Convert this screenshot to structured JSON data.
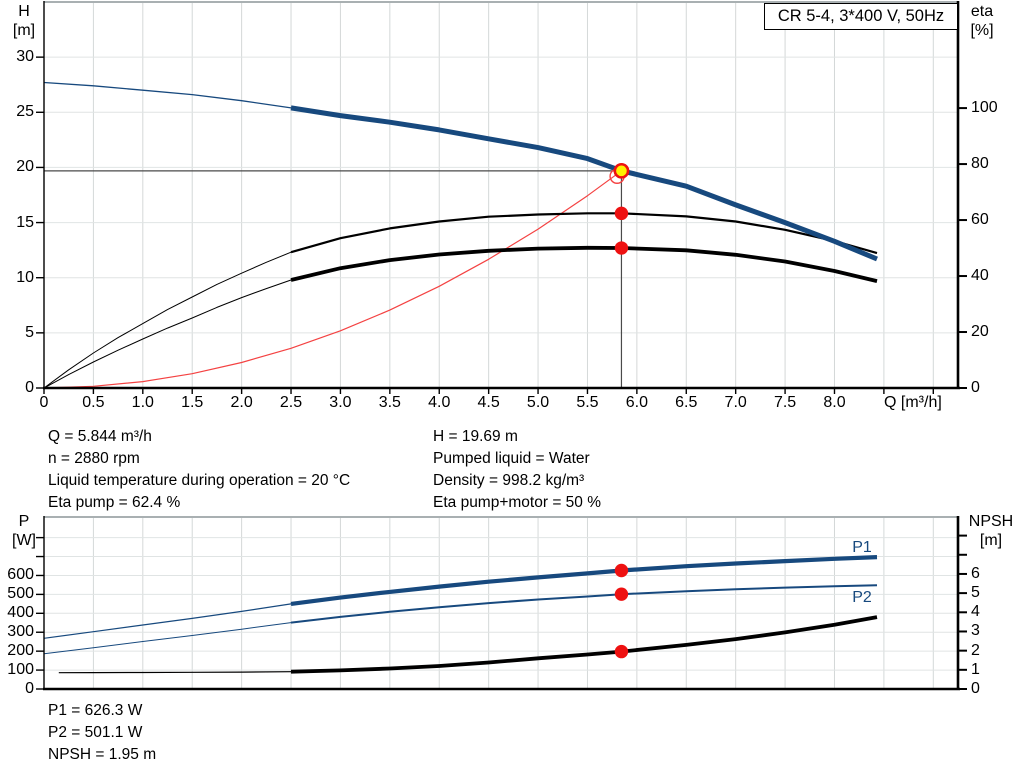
{
  "title_box": {
    "text": "CR 5-4, 3*400 V, 50Hz"
  },
  "colors": {
    "curve_blue": "#17497E",
    "curve_black": "#000000",
    "marker_red": "#EE1111",
    "duty_yellow": "#FFF000",
    "system_red": "#F44242",
    "grid": "#D4D8D8",
    "crosshair": "#4A4A4A"
  },
  "annotations": {
    "left": [
      "Q = 5.844 m³/h",
      "n = 2880 rpm",
      "Liquid temperature during operation = 20 °C",
      "Eta pump = 62.4 %"
    ],
    "right": [
      "H = 19.69 m",
      "Pumped liquid = Water",
      "Density = 998.2 kg/m³",
      "Eta pump+motor = 50 %"
    ],
    "bottom": [
      "P1 = 626.3 W",
      "P2 = 501.1 W",
      "NPSH = 1.95 m"
    ]
  },
  "chart_data": [
    {
      "type": "line",
      "title": "CR 5-4, 3*400 V, 50Hz",
      "x_axis": {
        "label": "Q [m³/h]",
        "min": 0,
        "max": 9.25,
        "tick_step": 0.5,
        "last_labeled": 8,
        "grid_last": 9,
        "show_tick_labels": true
      },
      "y_left": {
        "label": "H",
        "unit": "[m]",
        "min": 0,
        "max": 35,
        "ticks": [
          0,
          5,
          10,
          15,
          20,
          25,
          30
        ],
        "ticks_unlabeled": []
      },
      "y_right": {
        "label": "eta",
        "unit": "[%]",
        "min": 0,
        "max": 137.9,
        "ticks": [
          0,
          20,
          40,
          60,
          80,
          100
        ],
        "ticks_unlabeled": []
      },
      "series": [
        {
          "name": "system-curve",
          "axis": "left",
          "color": "#F44242",
          "w_thin": 1.2,
          "w_thick": 1.2,
          "split": null,
          "points": [
            [
              0,
              0
            ],
            [
              0.5,
              0.15
            ],
            [
              1,
              0.58
            ],
            [
              1.5,
              1.3
            ],
            [
              2,
              2.31
            ],
            [
              2.5,
              3.6
            ],
            [
              3,
              5.19
            ],
            [
              3.5,
              7.06
            ],
            [
              4,
              9.22
            ],
            [
              4.5,
              11.67
            ],
            [
              5,
              14.41
            ],
            [
              5.5,
              17.44
            ],
            [
              5.844,
              19.69
            ]
          ]
        },
        {
          "name": "eta-pump-motor-curve",
          "axis": "right",
          "color": "#000000",
          "w_thin": 1,
          "w_thick": 3.8,
          "split": 2.5,
          "points": [
            [
              0,
              0
            ],
            [
              0.25,
              4.8
            ],
            [
              0.5,
              9.3
            ],
            [
              0.75,
              13.5
            ],
            [
              1,
              17.5
            ],
            [
              1.25,
              21.4
            ],
            [
              1.5,
              25
            ],
            [
              1.75,
              28.8
            ],
            [
              2,
              32.3
            ],
            [
              2.25,
              35.5
            ],
            [
              2.5,
              38.6
            ],
            [
              3,
              42.8
            ],
            [
              3.5,
              45.7
            ],
            [
              4,
              47.7
            ],
            [
              4.5,
              49
            ],
            [
              5,
              49.8
            ],
            [
              5.5,
              50.1
            ],
            [
              5.844,
              50
            ],
            [
              6.5,
              49.2
            ],
            [
              7,
              47.6
            ],
            [
              7.5,
              45.2
            ],
            [
              8,
              41.8
            ],
            [
              8.43,
              38.2
            ]
          ]
        },
        {
          "name": "eta-pump-curve",
          "axis": "right",
          "color": "#000000",
          "w_thin": 1,
          "w_thick": 2.2,
          "split": 2.5,
          "points": [
            [
              0,
              0
            ],
            [
              0.25,
              6.5
            ],
            [
              0.5,
              12.5
            ],
            [
              0.75,
              18
            ],
            [
              1,
              23
            ],
            [
              1.25,
              28
            ],
            [
              1.5,
              32.5
            ],
            [
              1.75,
              37
            ],
            [
              2,
              41
            ],
            [
              2.25,
              44.9
            ],
            [
              2.5,
              48.5
            ],
            [
              3,
              53.5
            ],
            [
              3.5,
              57
            ],
            [
              4,
              59.5
            ],
            [
              4.5,
              61.2
            ],
            [
              5,
              62
            ],
            [
              5.5,
              62.4
            ],
            [
              5.844,
              62.4
            ],
            [
              6.5,
              61.3
            ],
            [
              7,
              59.5
            ],
            [
              7.5,
              56.5
            ],
            [
              8,
              52.5
            ],
            [
              8.43,
              48.2
            ]
          ]
        },
        {
          "name": "qh-curve",
          "axis": "left",
          "color": "#17497E",
          "w_thin": 1.3,
          "w_thick": 5,
          "split": 2.5,
          "points": [
            [
              0,
              27.7
            ],
            [
              0.5,
              27.4
            ],
            [
              1,
              27.0
            ],
            [
              1.5,
              26.6
            ],
            [
              2,
              26.05
            ],
            [
              2.5,
              25.4
            ],
            [
              3,
              24.7
            ],
            [
              3.5,
              24.1
            ],
            [
              4,
              23.4
            ],
            [
              4.5,
              22.6
            ],
            [
              5,
              21.8
            ],
            [
              5.5,
              20.8
            ],
            [
              5.844,
              19.69
            ],
            [
              6.5,
              18.3
            ],
            [
              7,
              16.6
            ],
            [
              7.5,
              15.0
            ],
            [
              8,
              13.3
            ],
            [
              8.43,
              11.7
            ]
          ]
        }
      ],
      "crosshair": {
        "q": 5.844,
        "v": 19.69
      },
      "markers": [
        {
          "name": "system-curve-end-ring",
          "axis": "left",
          "q": 5.8,
          "v": 19.2,
          "r": 7,
          "fill": "none",
          "stroke": "#F44242",
          "sw": 1.4
        },
        {
          "name": "eta-pump-point",
          "axis": "right",
          "q": 5.844,
          "v": 62.4,
          "r": 6.7,
          "fill": "#EE1111"
        },
        {
          "name": "eta-pump-motor-point",
          "axis": "right",
          "q": 5.844,
          "v": 50,
          "r": 6.7,
          "fill": "#EE1111"
        },
        {
          "name": "duty-point-marker",
          "axis": "left",
          "q": 5.844,
          "v": 19.69,
          "r": 6.6,
          "fill": "#FFF000",
          "stroke": "#EE1111",
          "sw": 2.6,
          "interactable": true
        }
      ]
    },
    {
      "type": "line",
      "x_axis": {
        "label": "",
        "min": 0,
        "max": 9.25,
        "tick_step": 0.5,
        "last_labeled": -1,
        "grid_last": 9,
        "show_tick_labels": false
      },
      "y_left": {
        "label": "P",
        "unit": "[W]",
        "min": 0,
        "max": 909,
        "ticks": [
          0,
          100,
          200,
          300,
          400,
          500,
          600
        ],
        "ticks_unlabeled": [
          700,
          800
        ]
      },
      "y_right": {
        "label": "NPSH",
        "unit": "[m]",
        "min": 0,
        "max": 8.97,
        "ticks": [
          0,
          1,
          2,
          3,
          4,
          5,
          6
        ],
        "ticks_unlabeled": [
          7,
          8
        ]
      },
      "series": [
        {
          "name": "npsh-curve",
          "axis": "right",
          "color": "#000000",
          "w_thin": 1.2,
          "w_thick": 3.8,
          "split": 2.5,
          "points": [
            [
              0.15,
              0.85
            ],
            [
              0.5,
              0.855
            ],
            [
              1,
              0.86
            ],
            [
              1.5,
              0.87
            ],
            [
              2,
              0.88
            ],
            [
              2.5,
              0.9
            ],
            [
              3,
              0.97
            ],
            [
              3.5,
              1.07
            ],
            [
              4,
              1.2
            ],
            [
              4.5,
              1.38
            ],
            [
              5,
              1.6
            ],
            [
              5.5,
              1.8
            ],
            [
              5.844,
              1.95
            ],
            [
              6.5,
              2.3
            ],
            [
              7,
              2.6
            ],
            [
              7.5,
              2.95
            ],
            [
              8,
              3.35
            ],
            [
              8.43,
              3.75
            ]
          ]
        },
        {
          "name": "p2-curve",
          "axis": "left",
          "color": "#17497E",
          "w_thin": 1,
          "w_thick": 2,
          "split": 2.5,
          "points": [
            [
              0,
              186
            ],
            [
              0.5,
              218
            ],
            [
              1,
              251
            ],
            [
              1.5,
              283
            ],
            [
              2,
              316
            ],
            [
              2.5,
              351
            ],
            [
              3,
              381
            ],
            [
              3.5,
              408
            ],
            [
              4,
              432
            ],
            [
              4.5,
              454
            ],
            [
              5,
              473
            ],
            [
              5.5,
              489
            ],
            [
              5.844,
              501.1
            ],
            [
              6.5,
              517
            ],
            [
              7,
              527
            ],
            [
              7.5,
              536
            ],
            [
              8,
              543
            ],
            [
              8.43,
              548
            ]
          ]
        },
        {
          "name": "p1-curve",
          "axis": "left",
          "color": "#17497E",
          "w_thin": 1.2,
          "w_thick": 4.2,
          "split": 2.5,
          "points": [
            [
              0,
              268
            ],
            [
              0.5,
              303
            ],
            [
              1,
              338
            ],
            [
              1.5,
              373
            ],
            [
              2,
              410
            ],
            [
              2.5,
              450
            ],
            [
              3,
              483
            ],
            [
              3.5,
              513
            ],
            [
              4,
              541
            ],
            [
              4.5,
              567
            ],
            [
              5,
              590
            ],
            [
              5.5,
              611
            ],
            [
              5.844,
              626.3
            ],
            [
              6.5,
              649
            ],
            [
              7,
              663
            ],
            [
              7.5,
              676
            ],
            [
              8,
              688
            ],
            [
              8.43,
              697
            ]
          ]
        }
      ],
      "markers": [
        {
          "name": "p1-point",
          "axis": "left",
          "q": 5.844,
          "v": 626.3,
          "r": 6.7,
          "fill": "#EE1111"
        },
        {
          "name": "p2-point",
          "axis": "left",
          "q": 5.844,
          "v": 501.1,
          "r": 6.7,
          "fill": "#EE1111"
        },
        {
          "name": "npsh-point",
          "axis": "right",
          "q": 5.844,
          "v": 1.95,
          "r": 6.7,
          "fill": "#EE1111"
        }
      ],
      "series_labels": [
        {
          "text": "P1"
        },
        {
          "text": "P2"
        }
      ]
    }
  ]
}
